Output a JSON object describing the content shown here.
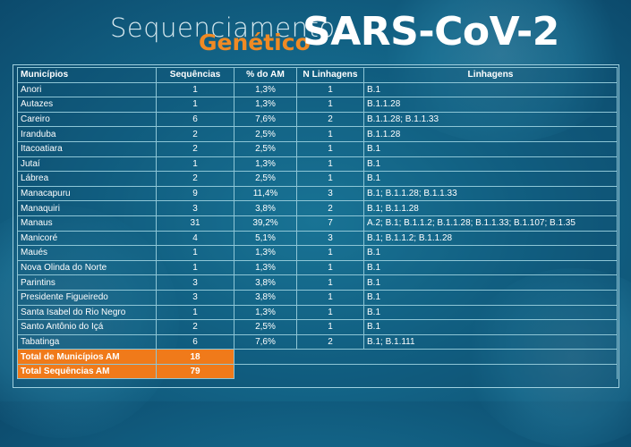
{
  "header": {
    "title_part1": "Sequenciamento",
    "title_part2": "Genético",
    "title_main": "SARS-CoV-2"
  },
  "table": {
    "columns": [
      "Municípios",
      "Sequências",
      "% do AM",
      "N Linhagens",
      "Linhagens"
    ],
    "rows": [
      [
        "Anori",
        "1",
        "1,3%",
        "1",
        "B.1"
      ],
      [
        "Autazes",
        "1",
        "1,3%",
        "1",
        "B.1.1.28"
      ],
      [
        "Careiro",
        "6",
        "7,6%",
        "2",
        "B.1.1.28; B.1.1.33"
      ],
      [
        "Iranduba",
        "2",
        "2,5%",
        "1",
        "B.1.1.28"
      ],
      [
        "Itacoatiara",
        "2",
        "2,5%",
        "1",
        "B.1"
      ],
      [
        "Jutaí",
        "1",
        "1,3%",
        "1",
        "B.1"
      ],
      [
        "Lábrea",
        "2",
        "2,5%",
        "1",
        "B.1"
      ],
      [
        "Manacapuru",
        "9",
        "11,4%",
        "3",
        "B.1; B.1.1.28; B.1.1.33"
      ],
      [
        "Manaquiri",
        "3",
        "3,8%",
        "2",
        "B.1; B.1.1.28"
      ],
      [
        "Manaus",
        "31",
        "39,2%",
        "7",
        "A.2; B.1; B.1.1.2; B.1.1.28; B.1.1.33; B.1.107; B.1.35"
      ],
      [
        "Manicoré",
        "4",
        "5,1%",
        "3",
        "B.1; B.1.1.2; B.1.1.28"
      ],
      [
        "Maués",
        "1",
        "1,3%",
        "1",
        "B.1"
      ],
      [
        "Nova Olinda do Norte",
        "1",
        "1,3%",
        "1",
        "B.1"
      ],
      [
        "Parintins",
        "3",
        "3,8%",
        "1",
        "B.1"
      ],
      [
        "Presidente Figueiredo",
        "3",
        "3,8%",
        "1",
        "B.1"
      ],
      [
        "Santa Isabel do Rio Negro",
        "1",
        "1,3%",
        "1",
        "B.1"
      ],
      [
        "Santo Antônio do Içá",
        "2",
        "2,5%",
        "1",
        "B.1"
      ],
      [
        "Tabatinga",
        "6",
        "7,6%",
        "2",
        "B.1; B.1.111"
      ]
    ],
    "totals": [
      {
        "label": "Total de Municípios AM",
        "value": "18"
      },
      {
        "label": "Total Sequências AM",
        "value": "79"
      }
    ]
  },
  "colors": {
    "accent_orange": "#f07a1a",
    "background": "#14698c"
  }
}
